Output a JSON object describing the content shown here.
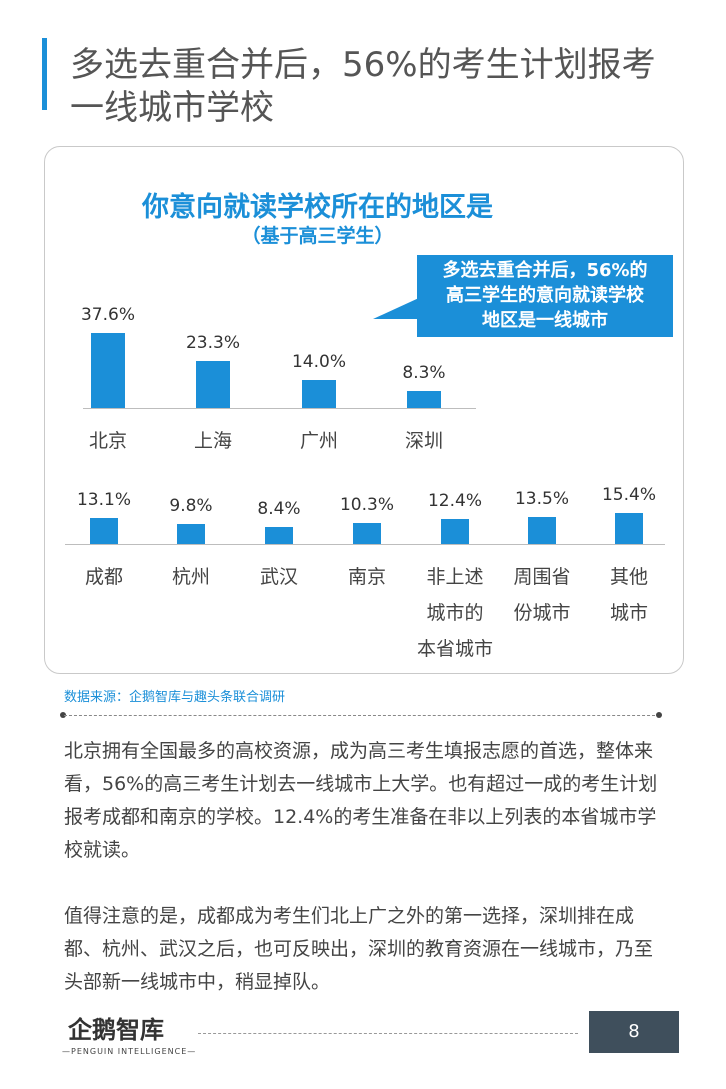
{
  "header": {
    "title_line1": "多选去重合并后，56%的考生计划报考",
    "title_line2": "一线城市学校"
  },
  "chart_data": {
    "type": "bar",
    "title": "你意向就读学校所在的地区是",
    "subtitle": "（基于高三学生）",
    "callout": [
      "多选去重合并后，56%的",
      "高三学生的意向就读学校",
      "地区是一线城市"
    ],
    "rows": [
      {
        "categories": [
          "北京",
          "上海",
          "广州",
          "深圳"
        ],
        "values": [
          37.6,
          23.3,
          14.0,
          8.3
        ],
        "value_labels": [
          "37.6%",
          "23.3%",
          "14.0%",
          "8.3%"
        ]
      },
      {
        "categories": [
          "成都",
          "杭州",
          "武汉",
          "南京",
          [
            "非上述",
            "城市的",
            "本省城市"
          ],
          [
            "周围省",
            "份城市"
          ],
          [
            "其他",
            "城市"
          ]
        ],
        "values": [
          13.1,
          9.8,
          8.4,
          10.3,
          12.4,
          13.5,
          15.4
        ],
        "value_labels": [
          "13.1%",
          "9.8%",
          "8.4%",
          "10.3%",
          "12.4%",
          "13.5%",
          "15.4%"
        ]
      }
    ],
    "colors": {
      "bar": "#1b8fd8"
    }
  },
  "source": "数据来源：企鹅智库与趣头条联合调研",
  "body": {
    "para1": "北京拥有全国最多的高校资源，成为高三考生填报志愿的首选，整体来看，56%的高三考生计划去一线城市上大学。也有超过一成的考生计划报考成都和南京的学校。12.4%的考生准备在非以上列表的本省城市学校就读。",
    "para2": "值得注意的是，成都成为考生们北上广之外的第一选择，深圳排在成都、杭州、武汉之后，也可反映出，深圳的教育资源在一线城市，乃至头部新一线城市中，稍显掉队。"
  },
  "footer": {
    "logo_text": "企鹅智库",
    "logo_sub": "—PENGUIN INTELLIGENCE—",
    "page_number": "8"
  },
  "colors": {
    "accent": "#1b8fd8",
    "page_box": "#3f4f5c"
  }
}
